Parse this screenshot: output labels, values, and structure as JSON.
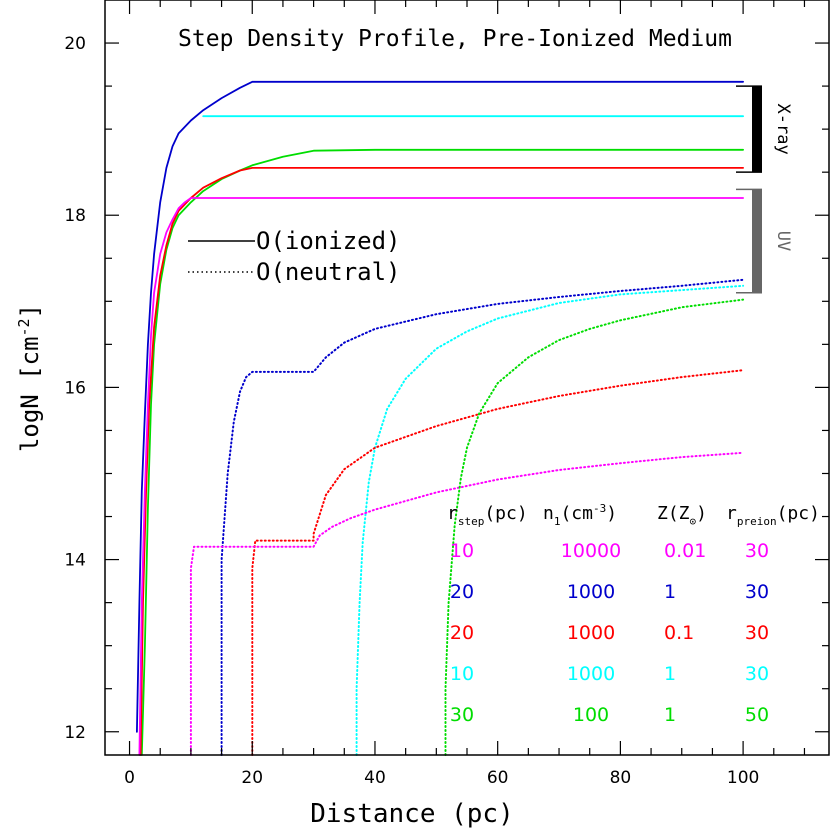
{
  "chart_data": {
    "type": "line",
    "title": "Step Density Profile, Pre-Ionized Medium",
    "xlabel": "Distance (pc)",
    "ylabel": "logN [cm",
    "ylabel_sup": "-2",
    "ylabel_close": "]",
    "xlim": [
      -4,
      114
    ],
    "ylim": [
      11.73,
      20.5
    ],
    "x_ticks": [
      0,
      20,
      40,
      60,
      80,
      100
    ],
    "y_ticks": [
      12,
      14,
      16,
      18,
      20
    ],
    "legend": [
      {
        "label": "O(ionized)",
        "style": "solid"
      },
      {
        "label": "O(neutral)",
        "style": "dotted"
      }
    ],
    "bands": [
      {
        "label": "X-ray",
        "y_range": [
          18.5,
          19.5
        ],
        "color": "#000000"
      },
      {
        "label": "UV",
        "y_range": [
          17.1,
          18.3
        ],
        "color": "#666666"
      }
    ],
    "table": {
      "headers": [
        {
          "main": "r",
          "sub": "step",
          "tail": "(pc)"
        },
        {
          "main": "n",
          "sub": "1",
          "tail": "(cm",
          "sup": "-3",
          "end": ")"
        },
        {
          "main": "Z(Z",
          "sub": "⊙",
          "tail": ")"
        },
        {
          "main": "r",
          "sub": "preion",
          "tail": "(pc)"
        }
      ],
      "rows": [
        {
          "color": "#ff00ff",
          "cells": [
            "10",
            "10000",
            "0.01",
            "30"
          ]
        },
        {
          "color": "#0000cc",
          "cells": [
            "20",
            "1000",
            "1",
            "30"
          ]
        },
        {
          "color": "#ff0000",
          "cells": [
            "20",
            "1000",
            "0.1",
            "30"
          ]
        },
        {
          "color": "#00ffff",
          "cells": [
            "10",
            "1000",
            "1",
            "30"
          ]
        },
        {
          "color": "#00dd00",
          "cells": [
            "30",
            "100",
            "1",
            "50"
          ]
        }
      ]
    },
    "series": [
      {
        "name": "ionized (rstep 20, n1 1000, Z 1)",
        "color": "#0000cc",
        "style": "solid",
        "x": [
          1.2,
          1.6,
          2,
          2.5,
          3,
          3.5,
          4,
          5,
          6,
          7,
          8,
          10,
          12,
          15,
          18,
          20,
          25,
          100
        ],
        "y": [
          12,
          13.5,
          14.8,
          15.7,
          16.5,
          17.1,
          17.55,
          18.15,
          18.55,
          18.8,
          18.95,
          19.1,
          19.22,
          19.36,
          19.48,
          19.55,
          19.55,
          19.55
        ]
      },
      {
        "name": "ionized (rstep 10, n1 1000, Z 1)",
        "color": "#00ffff",
        "style": "solid",
        "x": [
          12,
          100
        ],
        "y": [
          19.15,
          19.15
        ]
      },
      {
        "name": "ionized (rstep 30, n1 100, Z 1)",
        "color": "#00dd00",
        "style": "solid",
        "x": [
          2,
          2.5,
          3,
          3.5,
          4,
          5,
          6,
          7,
          8,
          10,
          12,
          15,
          18,
          20,
          25,
          30,
          40,
          100
        ],
        "y": [
          11.73,
          13.0,
          14.6,
          15.8,
          16.5,
          17.2,
          17.6,
          17.85,
          18.0,
          18.15,
          18.28,
          18.42,
          18.52,
          18.58,
          18.68,
          18.75,
          18.76,
          18.76
        ]
      },
      {
        "name": "ionized (rstep 20, n1 1000, Z 0.1)",
        "color": "#ff0000",
        "style": "solid",
        "x": [
          1.8,
          2.2,
          2.7,
          3.2,
          4,
          5,
          6,
          7,
          8,
          10,
          12,
          15,
          18,
          20,
          100
        ],
        "y": [
          11.73,
          13.5,
          14.8,
          15.8,
          16.7,
          17.3,
          17.65,
          17.9,
          18.05,
          18.2,
          18.32,
          18.43,
          18.52,
          18.55,
          18.55
        ]
      },
      {
        "name": "ionized (rstep 10, n1 10000, Z 0.01)",
        "color": "#ff00ff",
        "style": "solid",
        "x": [
          1.6,
          2,
          2.5,
          3,
          3.5,
          4,
          5,
          6,
          7,
          8,
          9,
          10,
          100
        ],
        "y": [
          11.73,
          13.5,
          14.8,
          15.8,
          16.6,
          17.1,
          17.55,
          17.8,
          17.95,
          18.08,
          18.15,
          18.2,
          18.2
        ]
      },
      {
        "name": "neutral (rstep 20, n1 1000, Z 1)",
        "color": "#0000cc",
        "style": "dotted",
        "x": [
          15,
          15,
          16,
          17,
          18,
          19,
          20,
          30,
          32,
          35,
          40,
          50,
          60,
          70,
          80,
          90,
          100
        ],
        "y": [
          11.73,
          14.0,
          15.0,
          15.6,
          15.95,
          16.12,
          16.18,
          16.18,
          16.35,
          16.52,
          16.68,
          16.85,
          16.97,
          17.05,
          17.12,
          17.18,
          17.25
        ]
      },
      {
        "name": "neutral (rstep 10, n1 1000, Z 1)",
        "color": "#00ffff",
        "style": "dotted",
        "x": [
          37,
          37,
          37.5,
          38,
          39,
          40,
          42,
          45,
          50,
          55,
          60,
          70,
          80,
          90,
          100
        ],
        "y": [
          11.73,
          12.5,
          13.5,
          14.2,
          14.9,
          15.3,
          15.75,
          16.1,
          16.45,
          16.65,
          16.8,
          16.98,
          17.08,
          17.13,
          17.18
        ]
      },
      {
        "name": "neutral (rstep 20, n1 1000, Z 0.1)",
        "color": "#ff0000",
        "style": "dotted",
        "x": [
          20,
          20,
          20.5,
          30,
          30,
          32,
          35,
          40,
          50,
          60,
          70,
          80,
          90,
          100
        ],
        "y": [
          11.73,
          13.9,
          14.22,
          14.22,
          14.3,
          14.75,
          15.05,
          15.3,
          15.55,
          15.75,
          15.9,
          16.02,
          16.12,
          16.2
        ]
      },
      {
        "name": "neutral (rstep 10, n1 10000, Z 0.01)",
        "color": "#ff00ff",
        "style": "dotted",
        "x": [
          10,
          10,
          10.5,
          30,
          31,
          33,
          36,
          40,
          50,
          60,
          70,
          80,
          90,
          100
        ],
        "y": [
          11.73,
          13.9,
          14.15,
          14.15,
          14.28,
          14.38,
          14.48,
          14.58,
          14.78,
          14.93,
          15.04,
          15.12,
          15.19,
          15.24
        ]
      },
      {
        "name": "neutral (rstep 30, n1 100, Z 1)",
        "color": "#00dd00",
        "style": "dotted",
        "x": [
          51.5,
          51.5,
          52,
          53,
          54,
          55,
          57,
          60,
          65,
          70,
          75,
          80,
          90,
          100
        ],
        "y": [
          11.73,
          12.5,
          13.5,
          14.4,
          14.95,
          15.3,
          15.7,
          16.05,
          16.35,
          16.55,
          16.68,
          16.78,
          16.93,
          17.02
        ]
      }
    ]
  }
}
